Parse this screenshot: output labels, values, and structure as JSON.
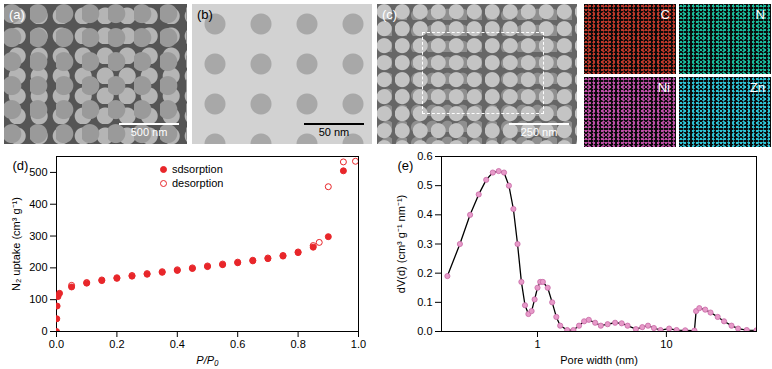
{
  "images": [
    {
      "label": "(a)",
      "scale_bar": "500 nm"
    },
    {
      "label": "(b)",
      "scale_bar": "50 nm"
    },
    {
      "label": "(c)",
      "scale_bar": "250 nm"
    }
  ],
  "eds_maps": [
    {
      "label": "C",
      "color": "#c0392b"
    },
    {
      "label": "N",
      "color": "#1abc9c"
    },
    {
      "label": "Ni",
      "color": "#c04fa8"
    },
    {
      "label": "Zn",
      "color": "#2ec4d6"
    }
  ],
  "chart_data": [
    {
      "type": "scatter",
      "title": "(d)",
      "x_label": "P/P₀",
      "y_label": "N₂ uptake (cm³ g⁻¹)",
      "xlim": [
        0,
        1.0
      ],
      "xticks": [
        {
          "value": 0,
          "label": "0.0"
        },
        {
          "value": 0.2,
          "label": "0.2"
        },
        {
          "value": 0.4,
          "label": "0.4"
        },
        {
          "value": 0.6,
          "label": "0.6"
        },
        {
          "value": 0.8,
          "label": "0.8"
        },
        {
          "value": 1.0,
          "label": "1.0"
        }
      ],
      "ylim": [
        0,
        550
      ],
      "yticks": [
        0,
        100,
        200,
        300,
        400,
        500
      ],
      "legend": "top",
      "series": [
        {
          "name": "sdsorption",
          "color": "#e8262a",
          "marker": "circle",
          "x": [
            0,
            0.001,
            0.002,
            0.005,
            0.01,
            0.05,
            0.1,
            0.15,
            0.2,
            0.25,
            0.3,
            0.35,
            0.4,
            0.45,
            0.5,
            0.55,
            0.6,
            0.65,
            0.7,
            0.75,
            0.8,
            0.85,
            0.9,
            0.95
          ],
          "values": [
            0,
            40,
            80,
            110,
            120,
            140,
            152,
            160,
            167,
            174,
            180,
            186,
            192,
            198,
            204,
            210,
            216,
            222,
            229,
            237,
            248,
            265,
            298,
            505
          ]
        },
        {
          "name": "desorption",
          "color": "#e8262a",
          "marker": "open circle",
          "x": [
            0.99,
            0.95,
            0.9,
            0.87,
            0.85,
            0.8,
            0.75,
            0.7,
            0.65,
            0.6,
            0.55,
            0.5,
            0.45,
            0.4,
            0.35,
            0.3,
            0.25,
            0.2,
            0.15,
            0.1,
            0.05
          ],
          "values": [
            535,
            533,
            455,
            280,
            270,
            250,
            239,
            231,
            224,
            218,
            212,
            206,
            200,
            194,
            188,
            182,
            176,
            169,
            162,
            154,
            145
          ]
        }
      ]
    },
    {
      "type": "line",
      "title": "(e)",
      "x_label": "Pore width (nm)",
      "y_label": "dV(d) (cm³ g⁻¹ nm⁻¹)",
      "log": "x",
      "xlim": [
        0.18,
        50
      ],
      "xticks": [
        1,
        10
      ],
      "ylim": [
        0,
        0.6
      ],
      "yticks": [
        {
          "value": 0,
          "label": "0.0"
        },
        {
          "value": 0.1,
          "label": "0.1"
        },
        {
          "value": 0.2,
          "label": "0.2"
        },
        {
          "value": 0.3,
          "label": "0.3"
        },
        {
          "value": 0.4,
          "label": "0.4"
        },
        {
          "value": 0.5,
          "label": "0.5"
        },
        {
          "value": 0.6,
          "label": "0.6"
        }
      ],
      "series": [
        {
          "color": "#000000",
          "marker": "circle",
          "x": [
            0.2,
            0.25,
            0.3,
            0.35,
            0.4,
            0.45,
            0.5,
            0.55,
            0.6,
            0.65,
            0.7,
            0.75,
            0.8,
            0.85,
            0.9,
            0.95,
            1.0,
            1.05,
            1.1,
            1.2,
            1.3,
            1.4,
            1.5,
            1.7,
            1.9,
            2.1,
            2.3,
            2.5,
            2.8,
            3.1,
            3.5,
            4.0,
            4.5,
            5.0,
            5.8,
            6.5,
            7.2,
            8.0,
            9.0,
            10.5,
            12,
            14,
            16.5,
            17,
            18,
            20,
            22,
            25,
            28,
            32,
            36,
            42,
            50
          ],
          "values": [
            0.19,
            0.3,
            0.4,
            0.47,
            0.52,
            0.545,
            0.55,
            0.545,
            0.5,
            0.42,
            0.3,
            0.17,
            0.09,
            0.06,
            0.07,
            0.11,
            0.15,
            0.17,
            0.17,
            0.15,
            0.1,
            0.05,
            0.02,
            0.005,
            0.005,
            0.02,
            0.035,
            0.04,
            0.03,
            0.02,
            0.025,
            0.03,
            0.028,
            0.02,
            0.008,
            0.015,
            0.02,
            0.012,
            0.005,
            0.01,
            0.005,
            0.004,
            0.003,
            0.07,
            0.08,
            0.075,
            0.065,
            0.05,
            0.035,
            0.02,
            0.01,
            0.005,
            0.004
          ]
        }
      ]
    }
  ]
}
